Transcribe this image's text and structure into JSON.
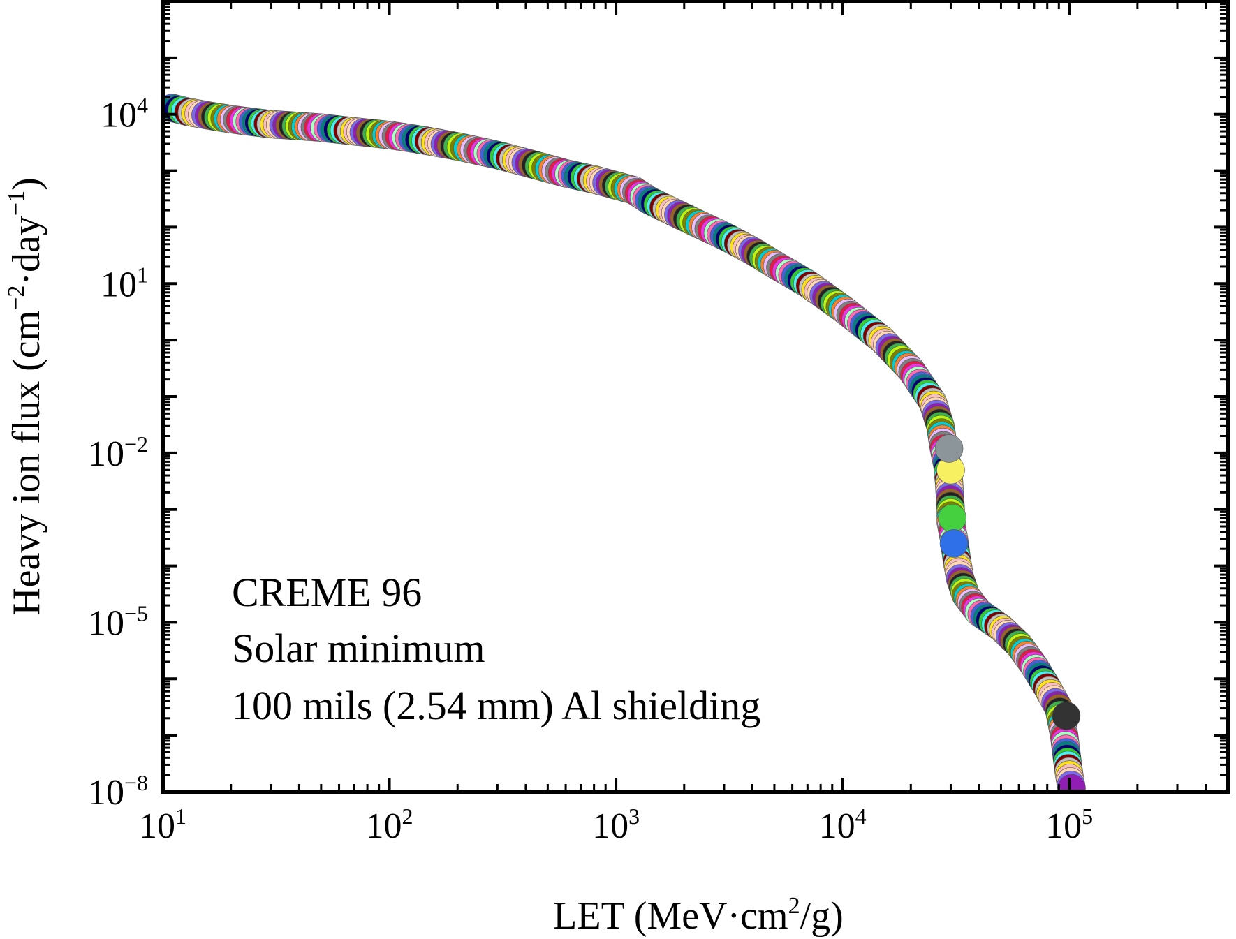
{
  "chart_data": {
    "type": "scatter",
    "title": "",
    "xlabel": {
      "pre": "LET (MeV·cm",
      "sup": "2",
      "post": "/g)"
    },
    "ylabel": {
      "pre": "Heavy ion flux (cm",
      "sup1": "−2",
      "mid": "·day",
      "sup2": "−1",
      "post": ")"
    },
    "x_scale": "log",
    "y_scale": "log",
    "xlim": [
      10,
      500000
    ],
    "ylim": [
      1e-08,
      1000000
    ],
    "grid": false,
    "x_ticks": [
      {
        "value": 10,
        "base": "10",
        "exp": "1"
      },
      {
        "value": 100,
        "base": "10",
        "exp": "2"
      },
      {
        "value": 1000,
        "base": "10",
        "exp": "3"
      },
      {
        "value": 10000,
        "base": "10",
        "exp": "4"
      },
      {
        "value": 100000,
        "base": "10",
        "exp": "5"
      }
    ],
    "y_ticks": [
      {
        "value": 1e-08,
        "base": "10",
        "exp": "−8"
      },
      {
        "value": 1e-05,
        "base": "10",
        "exp": "−5"
      },
      {
        "value": 0.01,
        "base": "10",
        "exp": "−2"
      },
      {
        "value": 10,
        "base": "10",
        "exp": "1"
      },
      {
        "value": 10000,
        "base": "10",
        "exp": "4"
      }
    ],
    "annotations": [
      "CREME 96",
      "Solar minimum",
      "100 mils (2.54 mm) Al shielding"
    ],
    "marker_colors": [
      "#e6194b",
      "#3cb44b",
      "#ffe119",
      "#4363d8",
      "#f58231",
      "#911eb4",
      "#46f0f0",
      "#f032e6",
      "#bcf60c",
      "#fabebe",
      "#008080",
      "#e6beff",
      "#9a6324",
      "#800000",
      "#aaffc3",
      "#808000",
      "#ffd8b1",
      "#000075",
      "#808080",
      "#222222",
      "#c0c0c0",
      "#ff69b4",
      "#00ced1",
      "#7b68ee",
      "#32cd32"
    ],
    "points": [
      [
        11,
        13000
      ],
      [
        13,
        11000
      ],
      [
        16,
        9500
      ],
      [
        20,
        8200
      ],
      [
        25,
        7300
      ],
      [
        30,
        6700
      ],
      [
        40,
        6200
      ],
      [
        50,
        5800
      ],
      [
        70,
        5000
      ],
      [
        100,
        4300
      ],
      [
        140,
        3500
      ],
      [
        200,
        2700
      ],
      [
        300,
        1900
      ],
      [
        400,
        1400
      ],
      [
        600,
        900
      ],
      [
        800,
        700
      ],
      [
        1000,
        550
      ],
      [
        1200,
        450
      ],
      [
        1400,
        300
      ],
      [
        2000,
        150
      ],
      [
        3000,
        70
      ],
      [
        4000,
        38
      ],
      [
        5000,
        22
      ],
      [
        7000,
        10
      ],
      [
        10000,
        3.6
      ],
      [
        15000,
        1.0
      ],
      [
        20000,
        0.3
      ],
      [
        25000,
        0.08
      ],
      [
        27000,
        0.03
      ],
      [
        28000,
        0.012
      ],
      [
        29000,
        0.006
      ],
      [
        29500,
        0.003
      ],
      [
        30000,
        0.001
      ],
      [
        30000,
        0.0006
      ],
      [
        31000,
        0.0003
      ],
      [
        32000,
        0.00012
      ],
      [
        33000,
        6e-05
      ],
      [
        35000,
        3e-05
      ],
      [
        40000,
        1.5e-05
      ],
      [
        50000,
        8e-06
      ],
      [
        60000,
        4e-06
      ],
      [
        70000,
        1.7e-06
      ],
      [
        80000,
        7e-07
      ],
      [
        90000,
        3e-07
      ],
      [
        95000,
        1e-07
      ],
      [
        97000,
        5e-08
      ],
      [
        100000,
        2e-08
      ],
      [
        103000,
        1e-08
      ]
    ],
    "highlight_points": [
      {
        "x": 30000,
        "y": 0.005,
        "color": "#f7f060"
      },
      {
        "x": 29500,
        "y": 0.012,
        "color": "#8c959a"
      },
      {
        "x": 30500,
        "y": 0.0007,
        "color": "#45d040"
      },
      {
        "x": 31000,
        "y": 0.00025,
        "color": "#2f6fe8"
      },
      {
        "x": 97000,
        "y": 2.2e-07,
        "color": "#333333"
      }
    ]
  }
}
